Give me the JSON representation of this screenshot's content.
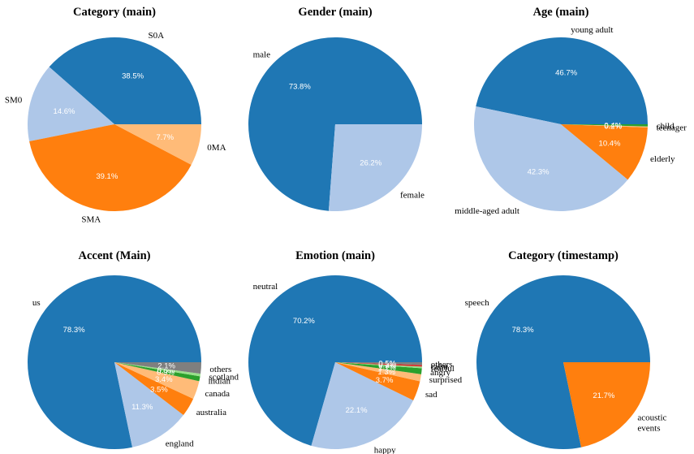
{
  "chart_data": [
    {
      "type": "pie",
      "title": "Category (main)",
      "slices": [
        {
          "label": "S0A",
          "value": 38.5,
          "pct": "38.5%",
          "color": "#1f77b4"
        },
        {
          "label": "SM0",
          "value": 14.6,
          "pct": "14.6%",
          "color": "#aec7e8"
        },
        {
          "label": "SMA",
          "value": 39.1,
          "pct": "39.1%",
          "color": "#ff7f0e"
        },
        {
          "label": "0MA",
          "value": 7.7,
          "pct": "7.7%",
          "color": "#ffbb78"
        }
      ]
    },
    {
      "type": "pie",
      "title": "Gender (main)",
      "slices": [
        {
          "label": "male",
          "value": 73.8,
          "pct": "73.8%",
          "color": "#1f77b4"
        },
        {
          "label": "female",
          "value": 26.2,
          "pct": "26.2%",
          "color": "#aec7e8"
        }
      ]
    },
    {
      "type": "pie",
      "title": "Age (main)",
      "slices": [
        {
          "label": "young adult",
          "value": 46.7,
          "pct": "46.7%",
          "color": "#1f77b4"
        },
        {
          "label": "middle-aged adult",
          "value": 42.3,
          "pct": "42.3%",
          "color": "#aec7e8"
        },
        {
          "label": "elderly",
          "value": 10.4,
          "pct": "10.4%",
          "color": "#ff7f0e"
        },
        {
          "label": "teenager",
          "value": 0.2,
          "pct": "0.2%",
          "color": "#ffbb78"
        },
        {
          "label": "child",
          "value": 0.4,
          "pct": "0.4%",
          "color": "#2ca02c"
        }
      ]
    },
    {
      "type": "pie",
      "title": "Accent (Main)",
      "slices": [
        {
          "label": "us",
          "value": 78.3,
          "pct": "78.3%",
          "color": "#1f77b4"
        },
        {
          "label": "england",
          "value": 11.3,
          "pct": "11.3%",
          "color": "#aec7e8"
        },
        {
          "label": "australia",
          "value": 3.5,
          "pct": "3.5%",
          "color": "#ff7f0e"
        },
        {
          "label": "canada",
          "value": 3.4,
          "pct": "3.4%",
          "color": "#ffbb78"
        },
        {
          "label": "indian",
          "value": 0.9,
          "pct": "0.9%",
          "color": "#2ca02c"
        },
        {
          "label": "scotland",
          "value": 0.5,
          "pct": "0.5%",
          "color": "#98df8a"
        },
        {
          "label": "others",
          "value": 2.1,
          "pct": "2.1%",
          "color": "#7f7f7f"
        }
      ]
    },
    {
      "type": "pie",
      "title": "Emotion (main)",
      "slices": [
        {
          "label": "neutral",
          "value": 70.2,
          "pct": "70.2%",
          "color": "#1f77b4"
        },
        {
          "label": "happy",
          "value": 22.1,
          "pct": "22.1%",
          "color": "#aec7e8"
        },
        {
          "label": "sad",
          "value": 3.7,
          "pct": "3.7%",
          "color": "#ff7f0e"
        },
        {
          "label": "surprised",
          "value": 1.3,
          "pct": "1.3%",
          "color": "#ffbb78"
        },
        {
          "label": "angry",
          "value": 1.1,
          "pct": "1.1%",
          "color": "#2ca02c"
        },
        {
          "label": "fearful",
          "value": 0.3,
          "pct": "0.3%",
          "color": "#98df8a"
        },
        {
          "label": "calm",
          "value": 0.3,
          "pct": "0.3%",
          "color": "#d62728"
        },
        {
          "label": "others",
          "value": 0.5,
          "pct": "0.5%",
          "color": "#7f7f7f"
        }
      ]
    },
    {
      "type": "pie",
      "title": "Category (timestamp)",
      "slices": [
        {
          "label": "speech",
          "value": 78.3,
          "pct": "78.3%",
          "color": "#1f77b4"
        },
        {
          "label": "acoustic\nevents",
          "value": 21.7,
          "pct": "21.7%",
          "color": "#ff7f0e"
        }
      ]
    }
  ]
}
